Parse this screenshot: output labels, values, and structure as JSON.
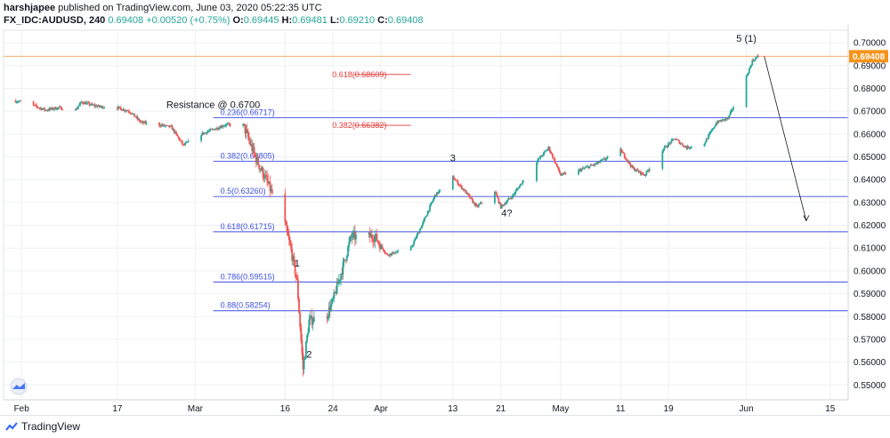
{
  "header": {
    "author": "harshjapee",
    "published": "published on TradingView.com, June 03, 2020 05:22:35 UTC",
    "symbol": "FX_IDC:AUDUSD, 240",
    "price": "0.69408",
    "change": "+0.00520 (+0.75%)",
    "open_label": "O:",
    "open": "0.69445",
    "high_label": "H:",
    "high": "0.69481",
    "low_label": "L:",
    "low": "0.69210",
    "close_label": "C:",
    "close": "0.69408"
  },
  "footer": {
    "brand": "TradingView"
  },
  "colors": {
    "up": "#26a69a",
    "down": "#ef5350",
    "fib_line": "#3c4fe0",
    "price_line": "#f5a25d",
    "price_tag": "#f7931a"
  },
  "chart_data": {
    "type": "candlestick",
    "ylim": [
      0.5435,
      0.7055
    ],
    "y_ticks": [
      "0.70000",
      "0.69000",
      "0.68000",
      "0.67000",
      "0.66000",
      "0.65000",
      "0.64000",
      "0.63000",
      "0.62000",
      "0.61000",
      "0.60000",
      "0.59000",
      "0.58000",
      "0.57000",
      "0.56000",
      "0.55000"
    ],
    "x_ticks": [
      "Feb",
      "17",
      "Mar",
      "16",
      "24",
      "Apr",
      "13",
      "21",
      "May",
      "11",
      "19",
      "Jun",
      "15"
    ],
    "last_price": "0.69408",
    "close_path": [
      [
        "2020-01-31",
        0.6745
      ],
      [
        "2020-02-03",
        0.6725
      ],
      [
        "2020-02-05",
        0.6705
      ],
      [
        "2020-02-07",
        0.6715
      ],
      [
        "2020-02-10",
        0.6705
      ],
      [
        "2020-02-11",
        0.674
      ],
      [
        "2020-02-13",
        0.6725
      ],
      [
        "2020-02-14",
        0.672
      ],
      [
        "2020-02-17",
        0.6715
      ],
      [
        "2020-02-19",
        0.67
      ],
      [
        "2020-02-21",
        0.665
      ],
      [
        "2020-02-24",
        0.664
      ],
      [
        "2020-02-26",
        0.663
      ],
      [
        "2020-02-28",
        0.655
      ],
      [
        "2020-03-02",
        0.66
      ],
      [
        "2020-03-04",
        0.662
      ],
      [
        "2020-03-06",
        0.664
      ],
      [
        "2020-03-09",
        0.664
      ],
      [
        "2020-03-11",
        0.65
      ],
      [
        "2020-03-13",
        0.639
      ],
      [
        "2020-03-16",
        0.62
      ],
      [
        "2020-03-17",
        0.609
      ],
      [
        "2020-03-18",
        0.595
      ],
      [
        "2020-03-19",
        0.557
      ],
      [
        "2020-03-20",
        0.578
      ],
      [
        "2020-03-23",
        0.581
      ],
      [
        "2020-03-24",
        0.587
      ],
      [
        "2020-03-26",
        0.605
      ],
      [
        "2020-03-27",
        0.615
      ],
      [
        "2020-03-31",
        0.615
      ],
      [
        "2020-04-02",
        0.607
      ],
      [
        "2020-04-06",
        0.61
      ],
      [
        "2020-04-08",
        0.621
      ],
      [
        "2020-04-10",
        0.633
      ],
      [
        "2020-04-13",
        0.641
      ],
      [
        "2020-04-15",
        0.635
      ],
      [
        "2020-04-17",
        0.628
      ],
      [
        "2020-04-20",
        0.635
      ],
      [
        "2020-04-21",
        0.628
      ],
      [
        "2020-04-23",
        0.633
      ],
      [
        "2020-04-27",
        0.648
      ],
      [
        "2020-04-29",
        0.654
      ],
      [
        "2020-05-01",
        0.642
      ],
      [
        "2020-05-04",
        0.644
      ],
      [
        "2020-05-07",
        0.647
      ],
      [
        "2020-05-11",
        0.653
      ],
      [
        "2020-05-13",
        0.645
      ],
      [
        "2020-05-15",
        0.642
      ],
      [
        "2020-05-18",
        0.653
      ],
      [
        "2020-05-20",
        0.658
      ],
      [
        "2020-05-22",
        0.654
      ],
      [
        "2020-05-25",
        0.656
      ],
      [
        "2020-05-27",
        0.665
      ],
      [
        "2020-05-29",
        0.667
      ],
      [
        "2020-06-01",
        0.685
      ],
      [
        "2020-06-02",
        0.692
      ],
      [
        "2020-06-03",
        0.6941
      ]
    ],
    "horizontal_levels": [
      {
        "label": "0.236(0.66717)",
        "price": 0.66717,
        "color": "#3c4fe0",
        "start": "2020-03-04"
      },
      {
        "label": "0.382(0.64805)",
        "price": 0.64805,
        "color": "#3c4fe0",
        "start": "2020-03-04"
      },
      {
        "label": "0.5(0.63260)",
        "price": 0.6326,
        "color": "#3c4fe0",
        "start": "2020-03-04"
      },
      {
        "label": "0.618(0.61715)",
        "price": 0.61715,
        "color": "#3c4fe0",
        "start": "2020-03-04"
      },
      {
        "label": "0.786(0.59515)",
        "price": 0.59515,
        "color": "#3c4fe0",
        "start": "2020-03-04"
      },
      {
        "label": "0.88(0.58254)",
        "price": 0.58254,
        "color": "#3c4fe0",
        "start": "2020-03-04"
      }
    ],
    "red_levels": [
      {
        "label": "0.618(0.68609)",
        "price": 0.68609
      },
      {
        "label": "0.382(0.66382)",
        "price": 0.66382
      }
    ],
    "annotations": [
      {
        "text": "Resistance @ 0.6700",
        "date": "2020-03-04",
        "price": 0.6715
      },
      {
        "text": "5 (1)",
        "date": "2020-06-01",
        "price": 0.7005
      },
      {
        "text": "3",
        "date": "2020-04-13",
        "price": 0.648
      },
      {
        "text": "4?",
        "date": "2020-04-22",
        "price": 0.624
      },
      {
        "text": "1",
        "date": "2020-03-18",
        "price": 0.602
      },
      {
        "text": "2",
        "date": "2020-03-20",
        "price": 0.562
      }
    ],
    "projection_arrow": {
      "from": [
        "2020-06-04",
        0.694
      ],
      "to": [
        "2020-06-11",
        0.622
      ]
    }
  }
}
